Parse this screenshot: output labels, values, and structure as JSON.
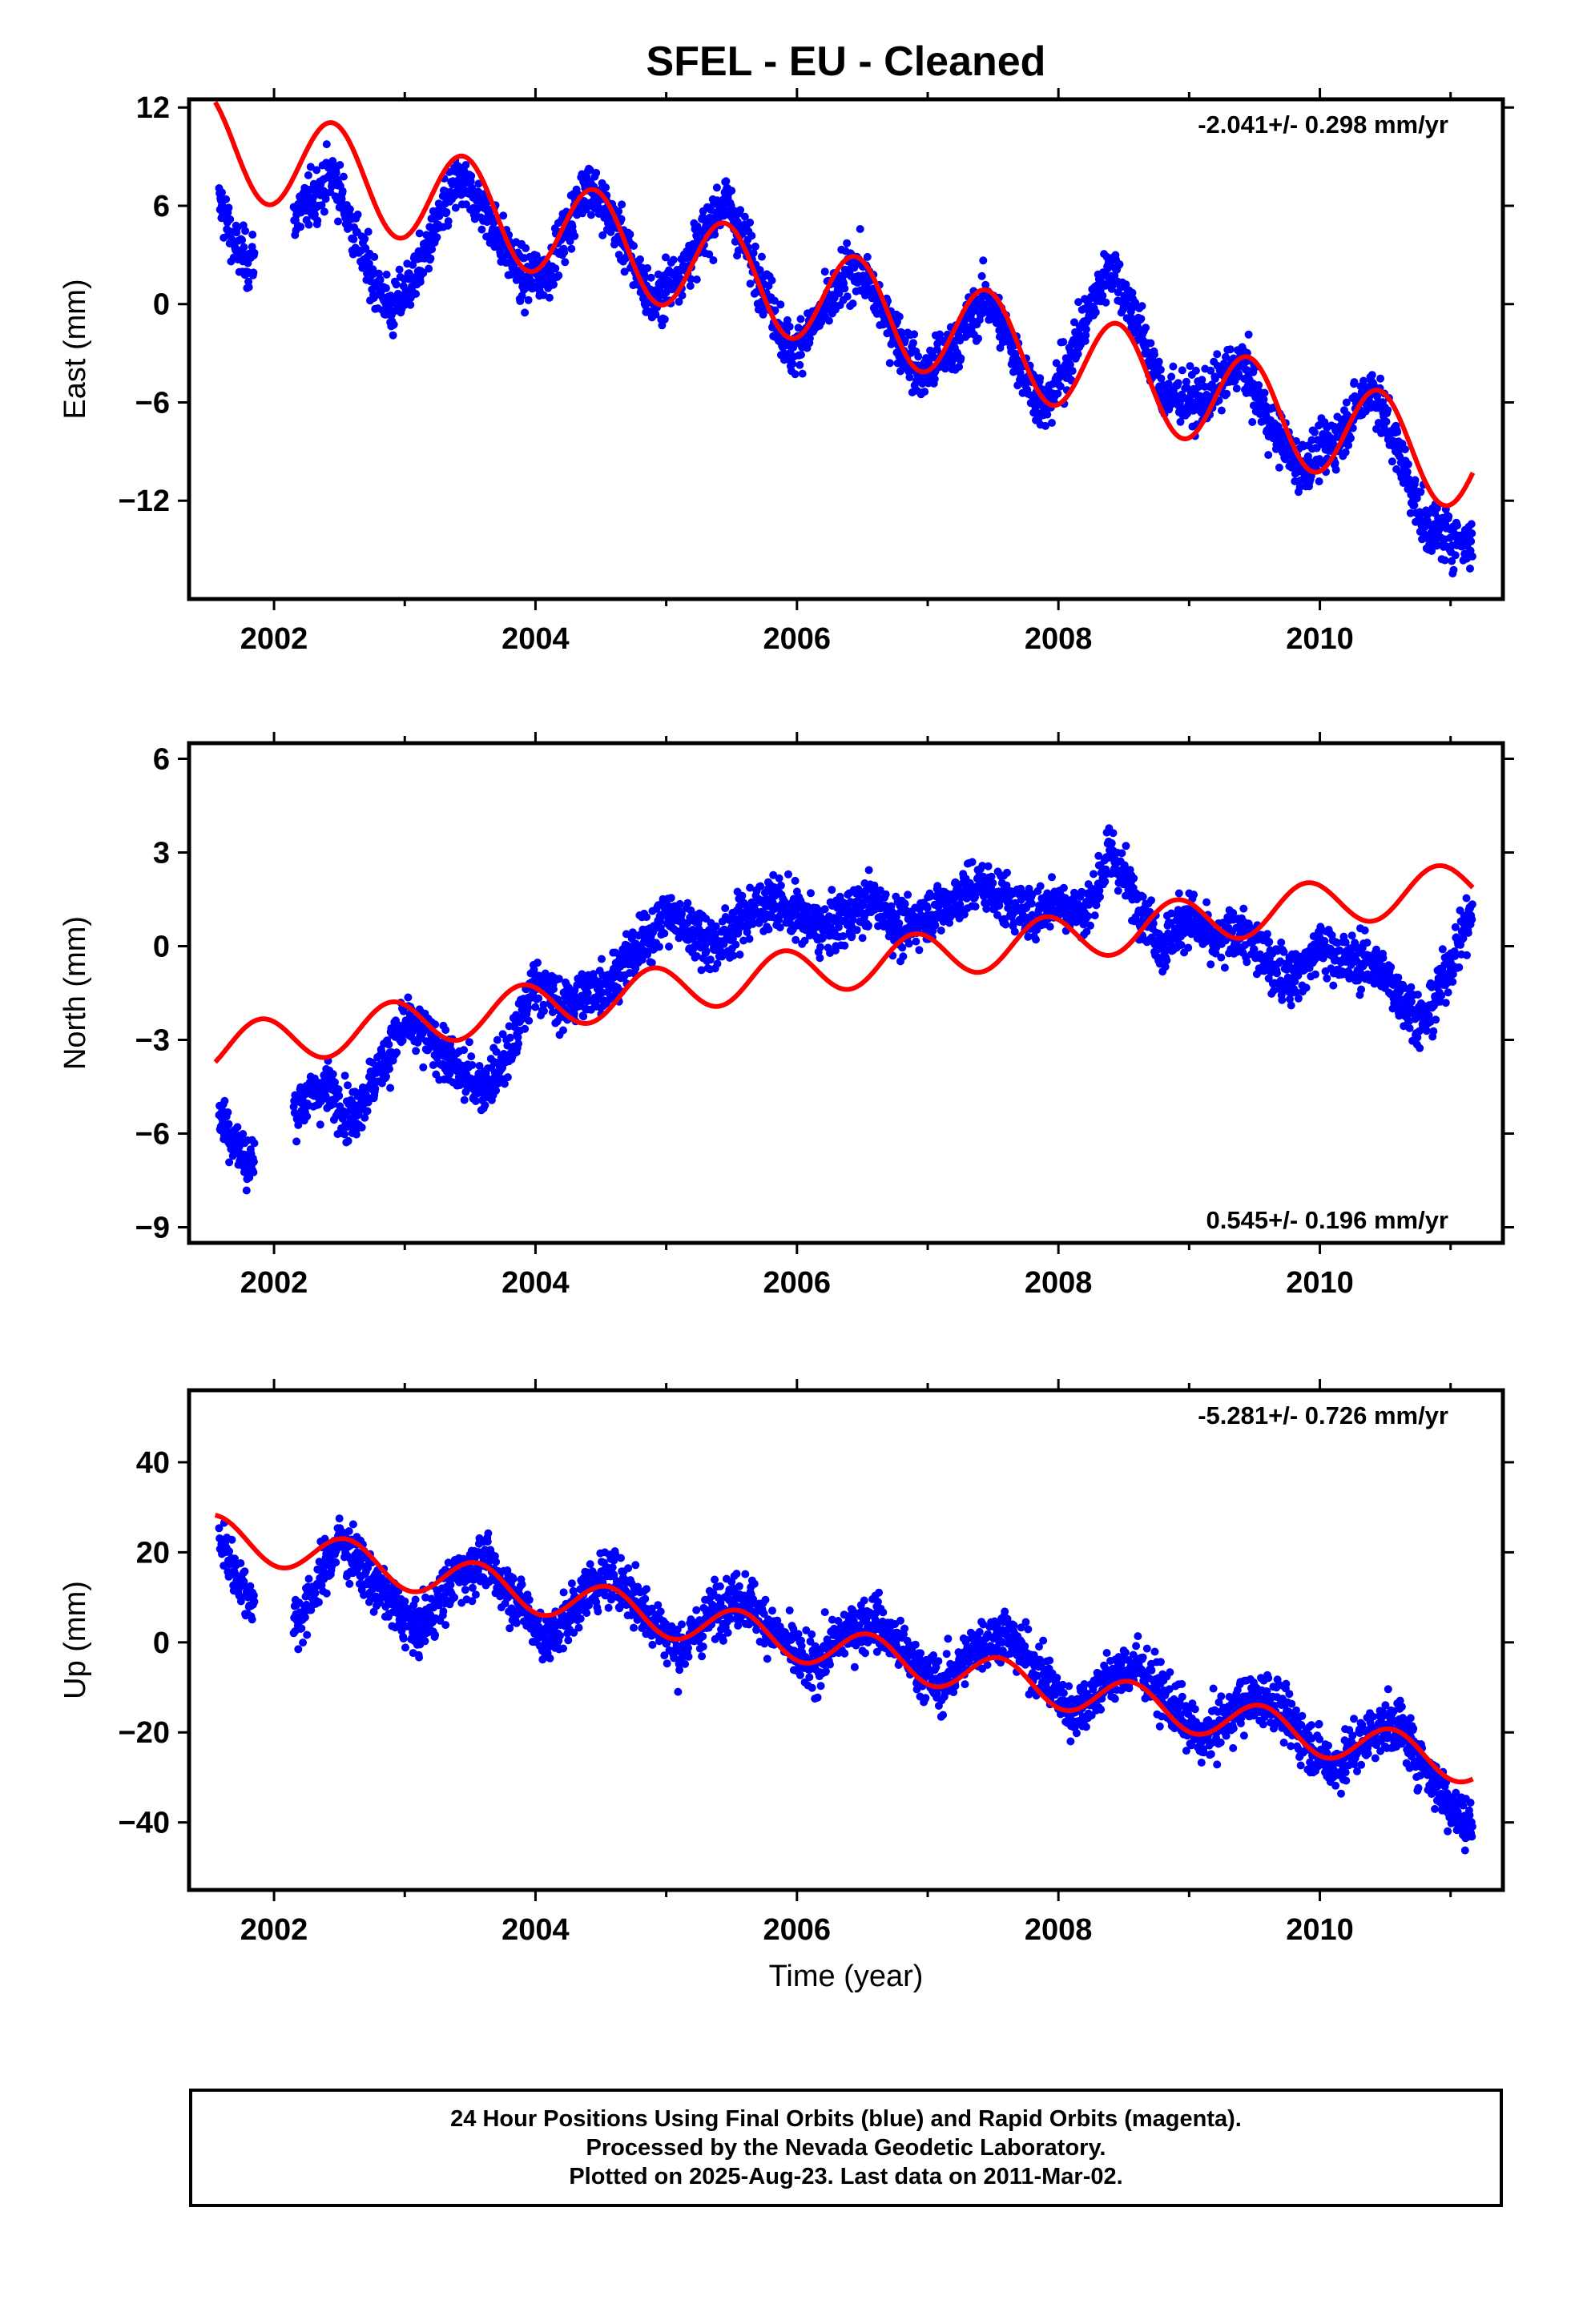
{
  "figure": {
    "title": "SFEL  - EU - Cleaned",
    "x_axis_label": "Time (year)",
    "caption_lines": [
      "24 Hour Positions Using Final Orbits (blue) and Rapid Orbits (magenta).",
      "Processed by the Nevada Geodetic Laboratory.",
      "Plotted on 2025-Aug-23. Last data on 2011-Mar-02."
    ],
    "colors": {
      "points": "#0000ff",
      "fit": "#ff0000",
      "axes": "#000000"
    }
  },
  "chart_data": [
    {
      "type": "scatter",
      "component": "East",
      "ylabel": "East (mm)",
      "rate_label": "-2.041+/- 0.298 mm/yr",
      "rate_position": "top-right",
      "xlim": [
        2001.35,
        2011.4
      ],
      "ylim": [
        -18,
        12.5
      ],
      "xticks": [
        2002,
        2004,
        2006,
        2008,
        2010
      ],
      "yticks": [
        -12,
        -6,
        0,
        6,
        12
      ],
      "grid": false,
      "series": [
        {
          "kind": "points",
          "x_range": [
            2001.58,
            2011.17
          ],
          "values": [
            [
              2001.6,
              6.0
            ],
            [
              2001.7,
              3.5
            ],
            [
              2001.8,
              2.5
            ],
            [
              2002.3,
              6.5
            ],
            [
              2002.45,
              8.0
            ],
            [
              2002.7,
              2.5
            ],
            [
              2002.9,
              -0.5
            ],
            [
              2003.1,
              2.0
            ],
            [
              2003.4,
              7.5
            ],
            [
              2003.6,
              6.0
            ],
            [
              2003.9,
              1.5
            ],
            [
              2004.1,
              2.0
            ],
            [
              2004.4,
              7.5
            ],
            [
              2004.6,
              5.0
            ],
            [
              2004.9,
              0.0
            ],
            [
              2005.2,
              3.0
            ],
            [
              2005.45,
              6.5
            ],
            [
              2005.7,
              2.0
            ],
            [
              2005.95,
              -3.0
            ],
            [
              2006.2,
              -0.5
            ],
            [
              2006.45,
              2.5
            ],
            [
              2006.7,
              -1.0
            ],
            [
              2006.95,
              -4.5
            ],
            [
              2007.2,
              -2.5
            ],
            [
              2007.45,
              0.5
            ],
            [
              2007.7,
              -3.5
            ],
            [
              2007.9,
              -6.5
            ],
            [
              2008.1,
              -3.0
            ],
            [
              2008.4,
              2.5
            ],
            [
              2008.6,
              -1.0
            ],
            [
              2008.8,
              -5.5
            ],
            [
              2009.1,
              -6.0
            ],
            [
              2009.4,
              -3.5
            ],
            [
              2009.6,
              -7.0
            ],
            [
              2009.85,
              -10.0
            ],
            [
              2010.1,
              -8.5
            ],
            [
              2010.4,
              -5.0
            ],
            [
              2010.6,
              -9.0
            ],
            [
              2010.8,
              -13.5
            ],
            [
              2011.1,
              -14.5
            ]
          ]
        },
        {
          "kind": "fit",
          "rate": -2.041,
          "offset_at_2001_5": 10.0,
          "annual_amp": 3.0,
          "annual_peak": 0.45,
          "extra_2008": 0
        }
      ]
    },
    {
      "type": "scatter",
      "component": "North",
      "ylabel": "North (mm)",
      "rate_label": "0.545+/- 0.196 mm/yr",
      "rate_position": "bottom-right",
      "xlim": [
        2001.35,
        2011.4
      ],
      "ylim": [
        -9.5,
        6.5
      ],
      "xticks": [
        2002,
        2004,
        2006,
        2008,
        2010
      ],
      "yticks": [
        -9,
        -6,
        -3,
        0,
        3,
        6
      ],
      "grid": false,
      "series": [
        {
          "kind": "points",
          "x_range": [
            2001.58,
            2011.17
          ],
          "values": [
            [
              2001.6,
              -5.5
            ],
            [
              2001.8,
              -7.0
            ],
            [
              2002.2,
              -5.0
            ],
            [
              2002.4,
              -4.5
            ],
            [
              2002.6,
              -5.5
            ],
            [
              2002.8,
              -4.0
            ],
            [
              2003.0,
              -2.5
            ],
            [
              2003.2,
              -3.0
            ],
            [
              2003.4,
              -4.0
            ],
            [
              2003.6,
              -4.5
            ],
            [
              2003.8,
              -3.5
            ],
            [
              2004.0,
              -1.0
            ],
            [
              2004.2,
              -2.0
            ],
            [
              2004.4,
              -1.5
            ],
            [
              2004.6,
              -1.0
            ],
            [
              2004.8,
              0.0
            ],
            [
              2005.0,
              1.0
            ],
            [
              2005.2,
              0.5
            ],
            [
              2005.4,
              0.0
            ],
            [
              2005.6,
              1.0
            ],
            [
              2005.8,
              1.5
            ],
            [
              2006.0,
              1.0
            ],
            [
              2006.2,
              0.5
            ],
            [
              2006.4,
              1.0
            ],
            [
              2006.6,
              1.5
            ],
            [
              2006.8,
              0.5
            ],
            [
              2007.0,
              1.0
            ],
            [
              2007.2,
              1.5
            ],
            [
              2007.4,
              2.0
            ],
            [
              2007.6,
              1.5
            ],
            [
              2007.8,
              1.0
            ],
            [
              2008.0,
              1.5
            ],
            [
              2008.2,
              1.0
            ],
            [
              2008.4,
              3.0
            ],
            [
              2008.6,
              1.5
            ],
            [
              2008.8,
              0.0
            ],
            [
              2009.0,
              1.0
            ],
            [
              2009.2,
              0.0
            ],
            [
              2009.4,
              0.5
            ],
            [
              2009.6,
              -0.5
            ],
            [
              2009.8,
              -1.0
            ],
            [
              2010.0,
              0.0
            ],
            [
              2010.2,
              -0.5
            ],
            [
              2010.4,
              -0.5
            ],
            [
              2010.6,
              -1.5
            ],
            [
              2010.8,
              -2.5
            ],
            [
              2011.0,
              -0.5
            ],
            [
              2011.15,
              1.0
            ]
          ]
        },
        {
          "kind": "fit",
          "rate": 0.545,
          "offset_at_2001_5": -3.3,
          "annual_amp": 0.75,
          "annual_peak": 0.9,
          "extra_2008": 0
        }
      ]
    },
    {
      "type": "scatter",
      "component": "Up",
      "ylabel": "Up (mm)",
      "rate_label": "-5.281+/- 0.726 mm/yr",
      "rate_position": "top-right",
      "xlim": [
        2001.35,
        2011.4
      ],
      "ylim": [
        -55,
        56
      ],
      "xticks": [
        2002,
        2004,
        2006,
        2008,
        2010
      ],
      "yticks": [
        -40,
        -20,
        0,
        20,
        40
      ],
      "grid": false,
      "series": [
        {
          "kind": "points",
          "x_range": [
            2001.58,
            2011.17
          ],
          "values": [
            [
              2001.6,
              22.0
            ],
            [
              2001.8,
              10.0
            ],
            [
              2002.2,
              5.0
            ],
            [
              2002.5,
              23.0
            ],
            [
              2002.8,
              12.0
            ],
            [
              2003.1,
              2.0
            ],
            [
              2003.4,
              15.0
            ],
            [
              2003.6,
              18.0
            ],
            [
              2003.9,
              8.0
            ],
            [
              2004.1,
              0.0
            ],
            [
              2004.4,
              12.0
            ],
            [
              2004.6,
              15.0
            ],
            [
              2004.9,
              5.0
            ],
            [
              2005.1,
              -2.0
            ],
            [
              2005.4,
              8.0
            ],
            [
              2005.6,
              10.0
            ],
            [
              2005.9,
              0.0
            ],
            [
              2006.1,
              -6.0
            ],
            [
              2006.4,
              3.0
            ],
            [
              2006.6,
              5.0
            ],
            [
              2006.9,
              -5.0
            ],
            [
              2007.1,
              -10.0
            ],
            [
              2007.4,
              0.0
            ],
            [
              2007.6,
              2.0
            ],
            [
              2007.9,
              -8.0
            ],
            [
              2008.1,
              -16.0
            ],
            [
              2008.4,
              -8.0
            ],
            [
              2008.6,
              -5.0
            ],
            [
              2008.9,
              -15.0
            ],
            [
              2009.1,
              -22.0
            ],
            [
              2009.4,
              -14.0
            ],
            [
              2009.6,
              -12.0
            ],
            [
              2009.9,
              -22.0
            ],
            [
              2010.1,
              -28.0
            ],
            [
              2010.4,
              -20.0
            ],
            [
              2010.6,
              -18.0
            ],
            [
              2010.9,
              -32.0
            ],
            [
              2011.1,
              -40.0
            ]
          ]
        },
        {
          "kind": "fit",
          "rate": -5.281,
          "offset_at_2001_5": 24.0,
          "annual_amp": 4.5,
          "annual_peak": 0.55,
          "extra_2008": 0
        }
      ]
    }
  ]
}
